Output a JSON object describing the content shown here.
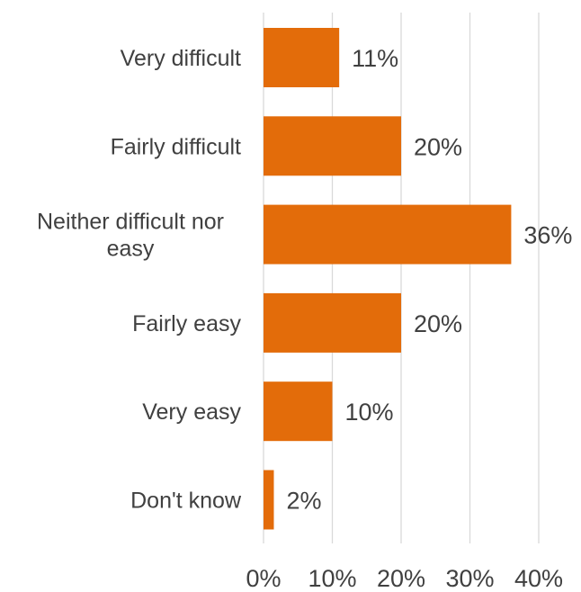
{
  "chart_data": {
    "type": "bar",
    "orientation": "horizontal",
    "categories": [
      [
        "Very difficult"
      ],
      [
        "Fairly difficult"
      ],
      [
        "Neither difficult nor",
        "easy"
      ],
      [
        "Fairly easy"
      ],
      [
        "Very easy"
      ],
      [
        "Don't know"
      ]
    ],
    "values": [
      11,
      20,
      36,
      20,
      10,
      2
    ],
    "value_labels": [
      "11%",
      "20%",
      "36%",
      "20%",
      "10%",
      "2%"
    ],
    "bar_widths": [
      11,
      20,
      36,
      20,
      10,
      1.5
    ],
    "xlim": [
      0,
      40
    ],
    "x_ticks": [
      0,
      10,
      20,
      30,
      40
    ],
    "x_tick_labels": [
      "0%",
      "10%",
      "20%",
      "30%",
      "40%"
    ],
    "grid": true,
    "legend": "none",
    "title": "",
    "xlabel": "",
    "ylabel": "",
    "colors": {
      "bar": "#E36C0A",
      "grid": "#d9d9d9",
      "text": "#404040"
    }
  }
}
